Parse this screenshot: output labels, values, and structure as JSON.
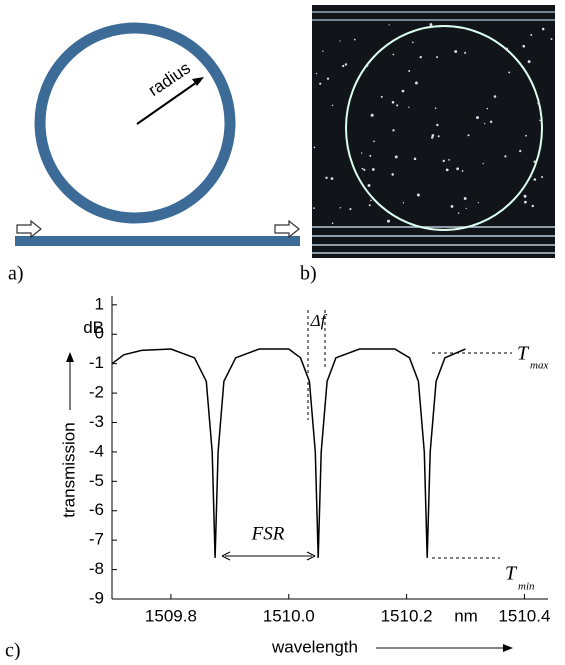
{
  "panels": {
    "a": {
      "label": "a)",
      "annotation": "radius"
    },
    "b": {
      "label": "b)"
    },
    "c": {
      "label": "c)"
    }
  },
  "chart_data": {
    "type": "line",
    "x_label": "wavelength",
    "y_label": "transmission",
    "x_unit": "nm",
    "y_unit": "dB",
    "x": [
      1509.7,
      1509.72,
      1509.75,
      1509.8,
      1509.84,
      1509.86,
      1509.87,
      1509.875,
      1509.88,
      1509.89,
      1509.91,
      1509.95,
      1510.0,
      1510.02,
      1510.035,
      1510.045,
      1510.05,
      1510.055,
      1510.065,
      1510.08,
      1510.12,
      1510.18,
      1510.205,
      1510.22,
      1510.23,
      1510.235,
      1510.24,
      1510.25,
      1510.265,
      1510.3
    ],
    "values": [
      -1.0,
      -0.7,
      -0.55,
      -0.5,
      -0.8,
      -1.6,
      -4.0,
      -7.6,
      -4.0,
      -1.6,
      -0.8,
      -0.5,
      -0.5,
      -0.8,
      -1.6,
      -4.0,
      -7.6,
      -4.0,
      -1.6,
      -0.8,
      -0.5,
      -0.5,
      -0.8,
      -1.6,
      -4.0,
      -7.6,
      -4.0,
      -1.6,
      -0.8,
      -0.5
    ],
    "color": "#000000",
    "xlim": [
      1509.7,
      1510.44
    ],
    "ylim": [
      -9,
      1.3
    ],
    "xticks": [
      1509.8,
      {
        "value": 1510.0,
        "label": "1510.0"
      },
      1510.2,
      1510.4
    ],
    "yticks": [
      1,
      0,
      -1,
      -2,
      -3,
      -4,
      -5,
      -6,
      -7,
      -8,
      -9
    ],
    "annotations": {
      "delta_f": "Δf",
      "fsr": "FSR",
      "t_max": "T",
      "t_max_sub": "max",
      "t_min": "T",
      "t_min_sub": "min"
    }
  }
}
